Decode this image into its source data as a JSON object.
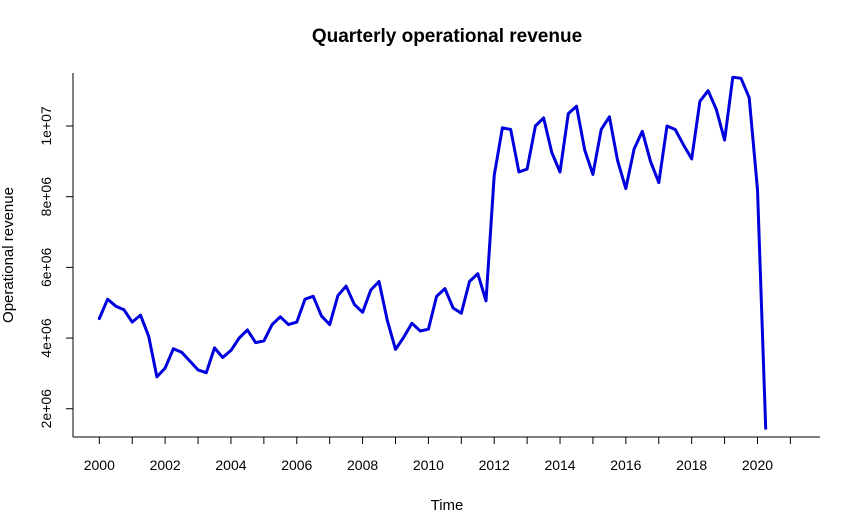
{
  "chart_data": {
    "type": "line",
    "title": "Quarterly operational revenue",
    "xlabel": "Time",
    "ylabel": "Operational revenue",
    "xlim": [
      1999.2,
      2021.9
    ],
    "ylim": [
      1200000,
      11500000
    ],
    "x_ticks": [
      2000,
      2002,
      2004,
      2006,
      2008,
      2010,
      2012,
      2014,
      2016,
      2018,
      2020
    ],
    "x_minor_ticks": [
      2001,
      2003,
      2005,
      2007,
      2009,
      2011,
      2013,
      2015,
      2017,
      2019,
      2021
    ],
    "y_ticks": [
      {
        "value": 2000000,
        "label": "2e+06"
      },
      {
        "value": 4000000,
        "label": "4e+06"
      },
      {
        "value": 6000000,
        "label": "6e+06"
      },
      {
        "value": 8000000,
        "label": "8e+06"
      },
      {
        "value": 10000000,
        "label": "1e+07"
      }
    ],
    "grid": false,
    "line_color": "#0000dd",
    "series": [
      {
        "x": [
          2000.0,
          2000.25,
          2000.5,
          2000.75,
          2001.0,
          2001.25,
          2001.5,
          2001.75,
          2002.0,
          2002.25,
          2002.5,
          2002.75,
          2003.0,
          2003.25,
          2003.5,
          2003.75,
          2004.0,
          2004.25,
          2004.5,
          2004.75,
          2005.0,
          2005.25,
          2005.5,
          2005.75,
          2006.0,
          2006.25,
          2006.5,
          2006.75,
          2007.0,
          2007.25,
          2007.5,
          2007.75,
          2008.0,
          2008.25,
          2008.5,
          2008.75,
          2009.0,
          2009.25,
          2009.5,
          2009.75,
          2010.0,
          2010.25,
          2010.5,
          2010.75,
          2011.0,
          2011.25,
          2011.5,
          2011.75,
          2012.0,
          2012.25,
          2012.5,
          2012.75,
          2013.0,
          2013.25,
          2013.5,
          2013.75,
          2014.0,
          2014.25,
          2014.5,
          2014.75,
          2015.0,
          2015.25,
          2015.5,
          2015.75,
          2016.0,
          2016.25,
          2016.5,
          2016.75,
          2017.0,
          2017.25,
          2017.5,
          2017.75,
          2018.0,
          2018.25,
          2018.5,
          2018.75,
          2019.0,
          2019.25,
          2019.5,
          2019.75,
          2020.0,
          2020.25
        ],
        "values": [
          4550000,
          5100000,
          4900000,
          4800000,
          4450000,
          4650000,
          4050000,
          2900000,
          3150000,
          3700000,
          3600000,
          3350000,
          3100000,
          3020000,
          3720000,
          3450000,
          3650000,
          4000000,
          4230000,
          3870000,
          3920000,
          4380000,
          4600000,
          4380000,
          4450000,
          5100000,
          5180000,
          4620000,
          4380000,
          5200000,
          5470000,
          4950000,
          4730000,
          5360000,
          5600000,
          4500000,
          3680000,
          4020000,
          4420000,
          4200000,
          4250000,
          5180000,
          5400000,
          4850000,
          4700000,
          5600000,
          5820000,
          5050000,
          8600000,
          9950000,
          9900000,
          8700000,
          8780000,
          10000000,
          10230000,
          9250000,
          8700000,
          10350000,
          10560000,
          9320000,
          8630000,
          9900000,
          10260000,
          9020000,
          8230000,
          9350000,
          9850000,
          9000000,
          8400000,
          10000000,
          9900000,
          9470000,
          9070000,
          10700000,
          11000000,
          10470000,
          9600000,
          11380000,
          11350000,
          10800000,
          8200000,
          1450000
        ]
      }
    ]
  }
}
